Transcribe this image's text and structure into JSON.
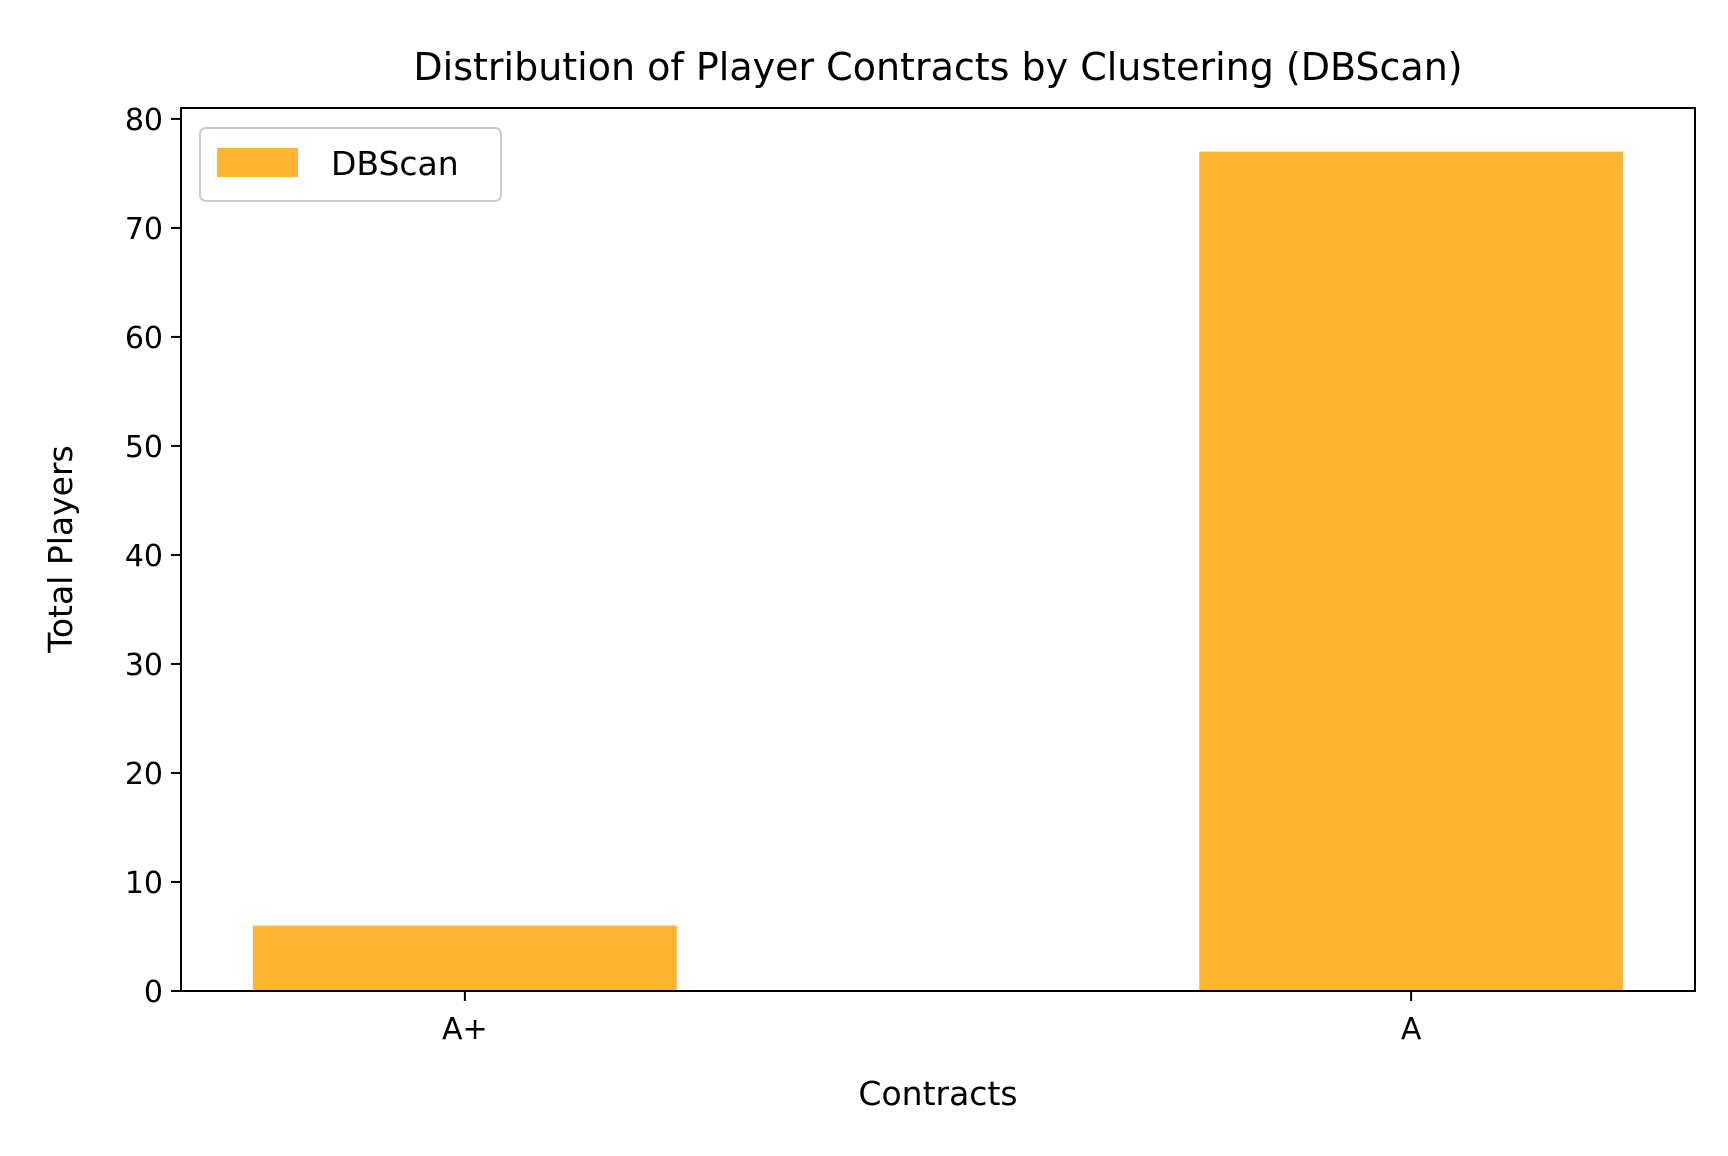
{
  "chart_data": {
    "type": "bar",
    "title": "Distribution of Player Contracts by Clustering (DBScan)",
    "xlabel": "Contracts",
    "ylabel": "Total Players",
    "categories": [
      "A+",
      "A"
    ],
    "series": [
      {
        "name": "DBScan",
        "values": [
          6,
          77
        ],
        "color": "#fdb533"
      }
    ],
    "ylim": [
      0,
      81
    ],
    "yticks": [
      0,
      10,
      20,
      30,
      40,
      50,
      60,
      70,
      80
    ],
    "grid": false,
    "legend_position": "top-left"
  }
}
